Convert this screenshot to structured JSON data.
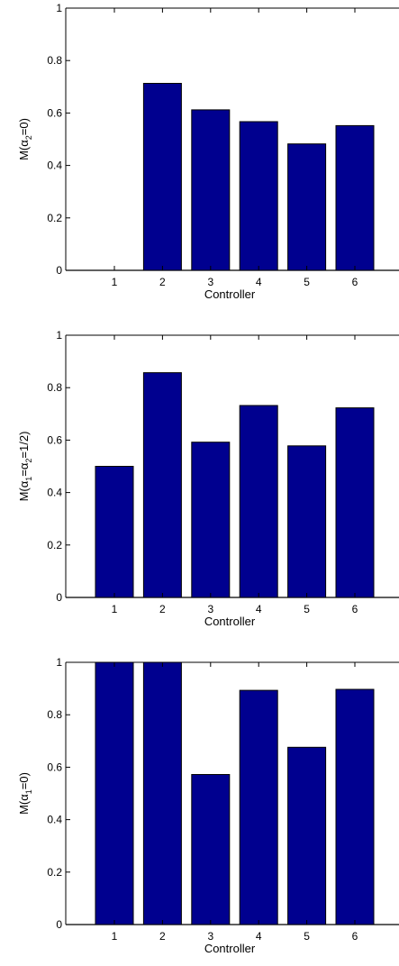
{
  "chart_data": [
    {
      "type": "bar",
      "categories": [
        "1",
        "2",
        "3",
        "4",
        "5",
        "6"
      ],
      "values": [
        0,
        0.713,
        0.612,
        0.567,
        0.482,
        0.552
      ],
      "xlabel": "Controller",
      "ylabel": {
        "base": "M(α",
        "sub": "2",
        "rest": "=0)"
      },
      "yticks": [
        "0",
        "0.2",
        "0.4",
        "0.6",
        "0.8",
        "1"
      ],
      "ylim": [
        0,
        1
      ],
      "bar_color": "#00008f"
    },
    {
      "type": "bar",
      "categories": [
        "1",
        "2",
        "3",
        "4",
        "5",
        "6"
      ],
      "values": [
        0.5,
        0.857,
        0.592,
        0.732,
        0.578,
        0.723
      ],
      "xlabel": "Controller",
      "ylabel": {
        "base": "M(α",
        "sub": "1",
        "mid": "=α",
        "sub2": "2",
        "rest": "=1/2)"
      },
      "yticks": [
        "0",
        "0.2",
        "0.4",
        "0.6",
        "0.8",
        "1"
      ],
      "ylim": [
        0,
        1
      ],
      "bar_color": "#00008f"
    },
    {
      "type": "bar",
      "categories": [
        "1",
        "2",
        "3",
        "4",
        "5",
        "6"
      ],
      "values": [
        1.0,
        1.0,
        0.572,
        0.893,
        0.676,
        0.897
      ],
      "xlabel": "Controller",
      "ylabel": {
        "base": "M(α",
        "sub": "1",
        "rest": "=0)"
      },
      "yticks": [
        "0",
        "0.2",
        "0.4",
        "0.6",
        "0.8",
        "1"
      ],
      "ylim": [
        0,
        1
      ],
      "bar_color": "#00008f"
    }
  ]
}
